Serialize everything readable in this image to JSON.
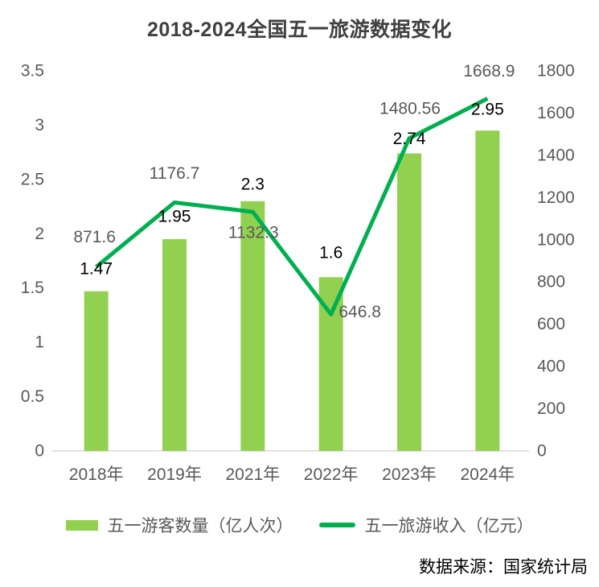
{
  "chart_data": {
    "type": "combo",
    "title": "2018-2024全国五一旅游数据变化",
    "title_color": "#404040",
    "categories": [
      "2018年",
      "2019年",
      "2021年",
      "2022年",
      "2023年",
      "2024年"
    ],
    "series": [
      {
        "name": "五一游客数量（亿人次）",
        "type": "bar",
        "axis": "left",
        "color": "#92D050",
        "label_color": "#000000",
        "values": [
          1.47,
          1.95,
          2.3,
          1.6,
          2.74,
          2.95
        ],
        "labels": [
          "1.47",
          "1.95",
          "2.3",
          "1.6",
          "2.74",
          "2.95"
        ],
        "label_offsets": [
          [
            0,
            -28
          ],
          [
            0,
            -28
          ],
          [
            0,
            -21
          ],
          [
            0,
            -30
          ],
          [
            0,
            -18
          ],
          [
            0,
            -26
          ]
        ]
      },
      {
        "name": "五一旅游收入（亿元）",
        "type": "line",
        "axis": "right",
        "color": "#00B050",
        "label_color": "#595959",
        "values": [
          871.6,
          1176.7,
          1132.3,
          646.8,
          1480.56,
          1668.9
        ],
        "labels": [
          "871.6",
          "1176.7",
          "1132.3",
          "646.8",
          "1480.56",
          "1668.9"
        ],
        "label_offsets": [
          [
            -2,
            -37
          ],
          [
            0,
            -36
          ],
          [
            1,
            26
          ],
          [
            36,
            -3
          ],
          [
            1,
            -37
          ],
          [
            2,
            -34
          ]
        ]
      }
    ],
    "left_axis": {
      "min": 0,
      "max": 3.5,
      "tick_labels": [
        "0",
        "0.5",
        "1",
        "1.5",
        "2",
        "2.5",
        "3",
        "3.5"
      ],
      "color": "#595959"
    },
    "right_axis": {
      "min": 0,
      "max": 1800,
      "tick_labels": [
        "0",
        "200",
        "400",
        "600",
        "800",
        "1000",
        "1200",
        "1400",
        "1600",
        "1800"
      ],
      "color": "#595959"
    },
    "x_axis": {
      "color": "#595959",
      "baseline_color": "#D9D9D9"
    },
    "grid": false,
    "legend_position": "bottom"
  },
  "source_note": "数据来源：国家统计局"
}
